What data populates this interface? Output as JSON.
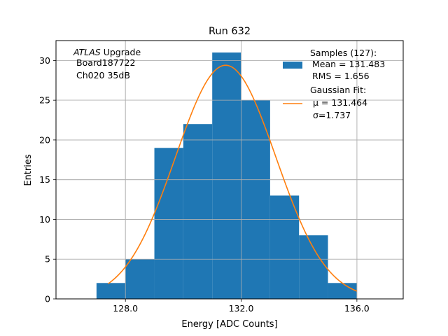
{
  "chart_data": {
    "type": "bar",
    "title": "Run 632",
    "xlabel": "Energy [ADC Counts]",
    "ylabel": "Entries",
    "xlim": [
      125.6,
      137.6
    ],
    "ylim": [
      0,
      32.5
    ],
    "xticks": [
      128.0,
      132.0,
      136.0
    ],
    "xtick_labels": [
      "128.0",
      "132.0",
      "136.0"
    ],
    "yticks": [
      0,
      5,
      10,
      15,
      20,
      25,
      30
    ],
    "ytick_labels": [
      "0",
      "5",
      "10",
      "15",
      "20",
      "25",
      "30"
    ],
    "grid": true,
    "bin_edges": [
      127,
      128,
      129,
      130,
      131,
      132,
      133,
      134,
      135,
      136
    ],
    "counts": [
      2,
      5,
      19,
      22,
      31,
      25,
      13,
      8,
      2
    ],
    "gaussian_fit": {
      "mu": 131.464,
      "sigma": 1.737,
      "amplitude": 29.4,
      "x_range": [
        127.4,
        136
      ]
    },
    "bar_color": "#1f77b4",
    "fit_color": "#ff7f0e",
    "legend_position": "upper right",
    "legend": {
      "samples_title": "Samples (127):",
      "samples_mean": "Mean = 131.483",
      "samples_rms": "RMS = 1.656",
      "fit_title": "Gaussian Fit:",
      "fit_mu_label": "μ = 131.464",
      "fit_sigma_label": "σ=1.737"
    },
    "annotation": {
      "experiment": "ATLAS",
      "experiment_suffix": " Upgrade",
      "board": "Board187722",
      "channel": "Ch020 35dB"
    }
  }
}
